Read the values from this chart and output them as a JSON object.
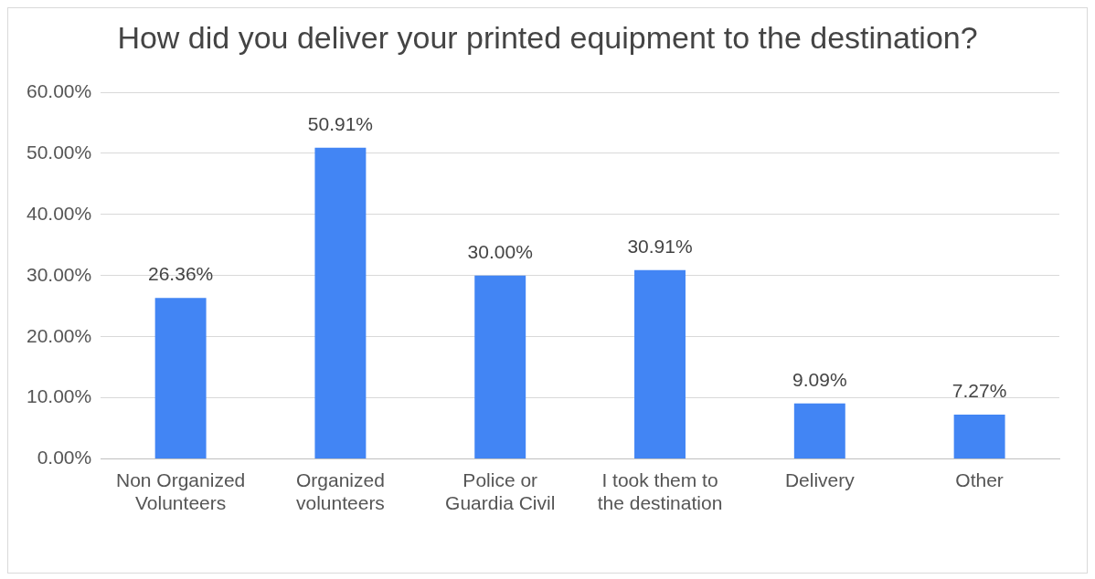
{
  "chart_data": {
    "type": "bar",
    "title": "How did you deliver your printed equipment to the destination?",
    "categories": [
      "Non Organized Volunteers",
      "Organized volunteers",
      "Police or Guardia Civil",
      "I took them to the destination",
      "Delivery",
      "Other"
    ],
    "values": [
      26.36,
      50.91,
      30.0,
      30.91,
      9.09,
      7.27
    ],
    "value_labels": [
      "26.36%",
      "50.91%",
      "30.00%",
      "30.91%",
      "9.09%",
      "7.27%"
    ],
    "color": "#4285f4",
    "ylim": [
      0,
      60
    ],
    "yticks": [
      {
        "value": 0,
        "label": "0.00%"
      },
      {
        "value": 10,
        "label": "10.00%"
      },
      {
        "value": 20,
        "label": "20.00%"
      },
      {
        "value": 30,
        "label": "30.00%"
      },
      {
        "value": 40,
        "label": "40.00%"
      },
      {
        "value": 50,
        "label": "50.00%"
      },
      {
        "value": 60,
        "label": "60.00%"
      }
    ],
    "grid": "y",
    "legend": false
  }
}
